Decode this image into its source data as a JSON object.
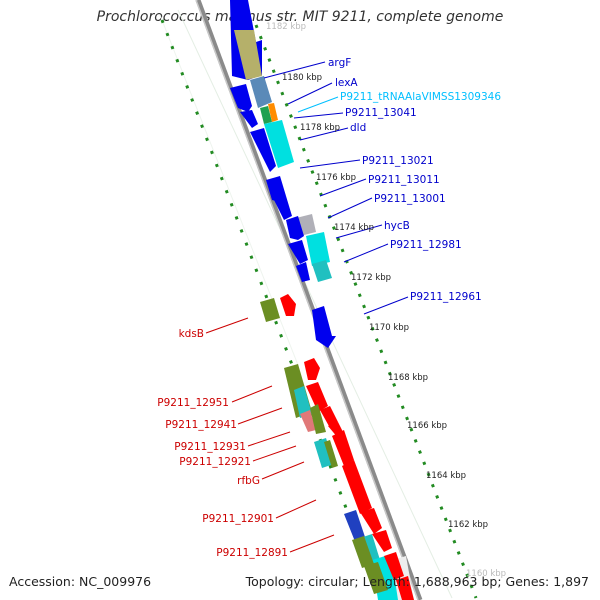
{
  "title": "Prochlorococcus marinus str. MIT 9211, complete genome",
  "footer": {
    "accession": "Accession: NC_009976",
    "topology": "Topology: circular; Length: 1,688,963 bp; Genes: 1,897"
  },
  "colors": {
    "backbone": "#808080",
    "tick_ring": "#228B22",
    "forward_gene": "#0000FF",
    "reverse_gene": "#FF0000",
    "trna_label": "#00BFFF"
  },
  "ticks": [
    "1182 kbp",
    "1180 kbp",
    "1178 kbp",
    "1176 kbp",
    "1174 kbp",
    "1172 kbp",
    "1170 kbp",
    "1168 kbp",
    "1166 kbp",
    "1164 kbp",
    "1162 kbp",
    "1160 kbp"
  ],
  "forward_labels": [
    "argF",
    "lexA",
    "P9211_tRNAAlaVIMSS1309346",
    "P9211_13041",
    "dld",
    "P9211_13021",
    "P9211_13011",
    "P9211_13001",
    "hycB",
    "P9211_12981",
    "P9211_12961"
  ],
  "reverse_labels": [
    "kdsB",
    "P9211_12951",
    "P9211_12941",
    "P9211_12931",
    "P9211_12921",
    "rfbG",
    "P9211_12901",
    "P9211_12891"
  ]
}
